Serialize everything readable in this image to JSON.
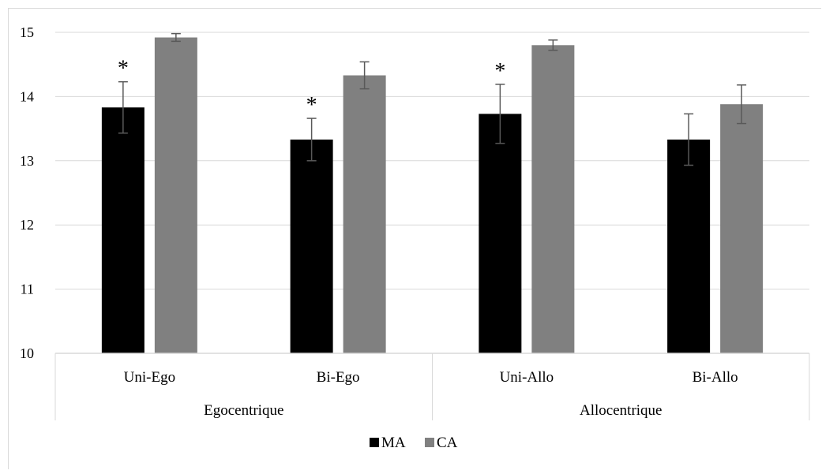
{
  "chart_data": {
    "type": "bar",
    "title": "",
    "xlabel": "",
    "ylabel": "",
    "ylim": [
      10,
      15
    ],
    "yticks": [
      10,
      11,
      12,
      13,
      14,
      15
    ],
    "grid": true,
    "legend_position": "bottom",
    "groups": [
      {
        "label": "Egocentrique",
        "categories": [
          "Uni-Ego",
          "Bi-Ego"
        ]
      },
      {
        "label": "Allocentrique",
        "categories": [
          "Uni-Allo",
          "Bi-Allo"
        ]
      }
    ],
    "categories": [
      "Uni-Ego",
      "Bi-Ego",
      "Uni-Allo",
      "Bi-Allo"
    ],
    "series": [
      {
        "name": "MA",
        "color": "#000000",
        "values": [
          13.83,
          13.33,
          13.73,
          13.33
        ],
        "errors": [
          0.4,
          0.33,
          0.46,
          0.4
        ]
      },
      {
        "name": "CA",
        "color": "#808080",
        "values": [
          14.92,
          14.33,
          14.8,
          13.88
        ],
        "errors": [
          0.06,
          0.21,
          0.08,
          0.3
        ]
      }
    ],
    "annotations": [
      {
        "category": "Uni-Ego",
        "series": "MA",
        "text": "*"
      },
      {
        "category": "Bi-Ego",
        "series": "MA",
        "text": "*"
      },
      {
        "category": "Uni-Allo",
        "series": "MA",
        "text": "*"
      }
    ]
  }
}
